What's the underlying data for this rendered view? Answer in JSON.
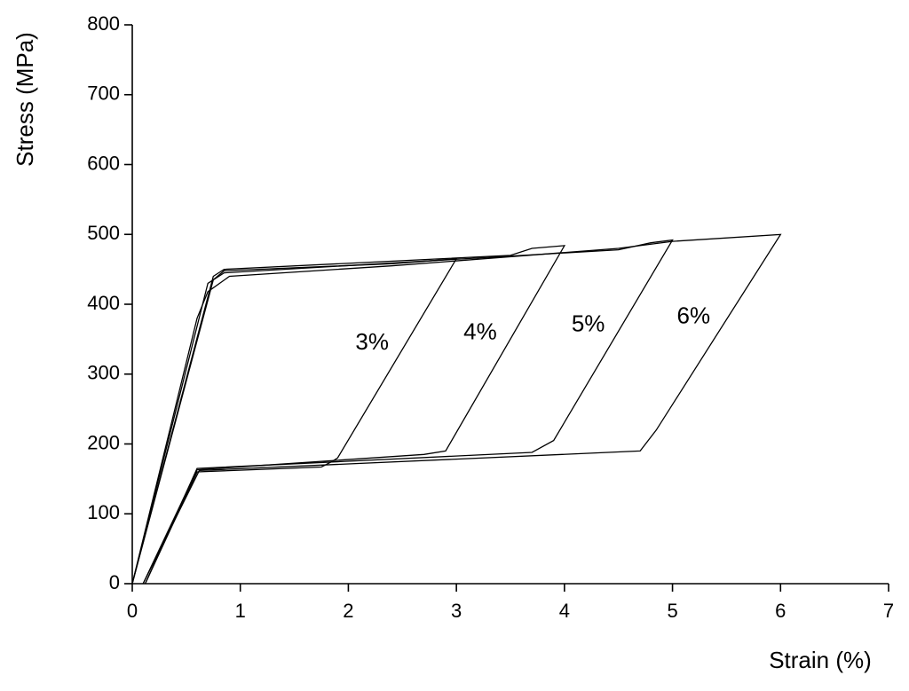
{
  "chart_data": {
    "type": "line",
    "x_label": "Strain (%)",
    "y_label": "Stress (MPa)",
    "xlim": [
      0,
      7
    ],
    "ylim": [
      0,
      800
    ],
    "xticks": [
      0,
      1,
      2,
      3,
      4,
      5,
      6,
      7
    ],
    "yticks": [
      0,
      100,
      200,
      300,
      400,
      500,
      600,
      700,
      800
    ],
    "color": "#000000",
    "series": [
      {
        "name": "3%",
        "x": [
          0,
          0.75,
          0.85,
          2.4,
          3.0,
          1.9,
          1.85,
          1.75,
          0.6,
          0.12
        ],
        "values": [
          0,
          435,
          448,
          458,
          465,
          180,
          175,
          167,
          160,
          0
        ]
      },
      {
        "name": "4%",
        "x": [
          0,
          0.75,
          0.85,
          3.5,
          3.7,
          4.0,
          2.9,
          2.7,
          0.6,
          0.1
        ],
        "values": [
          0,
          440,
          450,
          470,
          480,
          484,
          190,
          185,
          163,
          0
        ]
      },
      {
        "name": "5%",
        "x": [
          0,
          0.7,
          0.85,
          4.5,
          4.8,
          5.0,
          3.9,
          3.7,
          0.6,
          0.12
        ],
        "values": [
          0,
          430,
          445,
          478,
          488,
          492,
          205,
          188,
          165,
          0
        ]
      },
      {
        "name": "6%",
        "x": [
          0,
          0.6,
          0.7,
          0.9,
          2.4,
          4.5,
          5.0,
          6.0,
          4.85,
          4.7,
          0.62,
          0.1
        ],
        "values": [
          0,
          380,
          418,
          440,
          455,
          480,
          490,
          500,
          220,
          190,
          162,
          0
        ]
      }
    ]
  }
}
